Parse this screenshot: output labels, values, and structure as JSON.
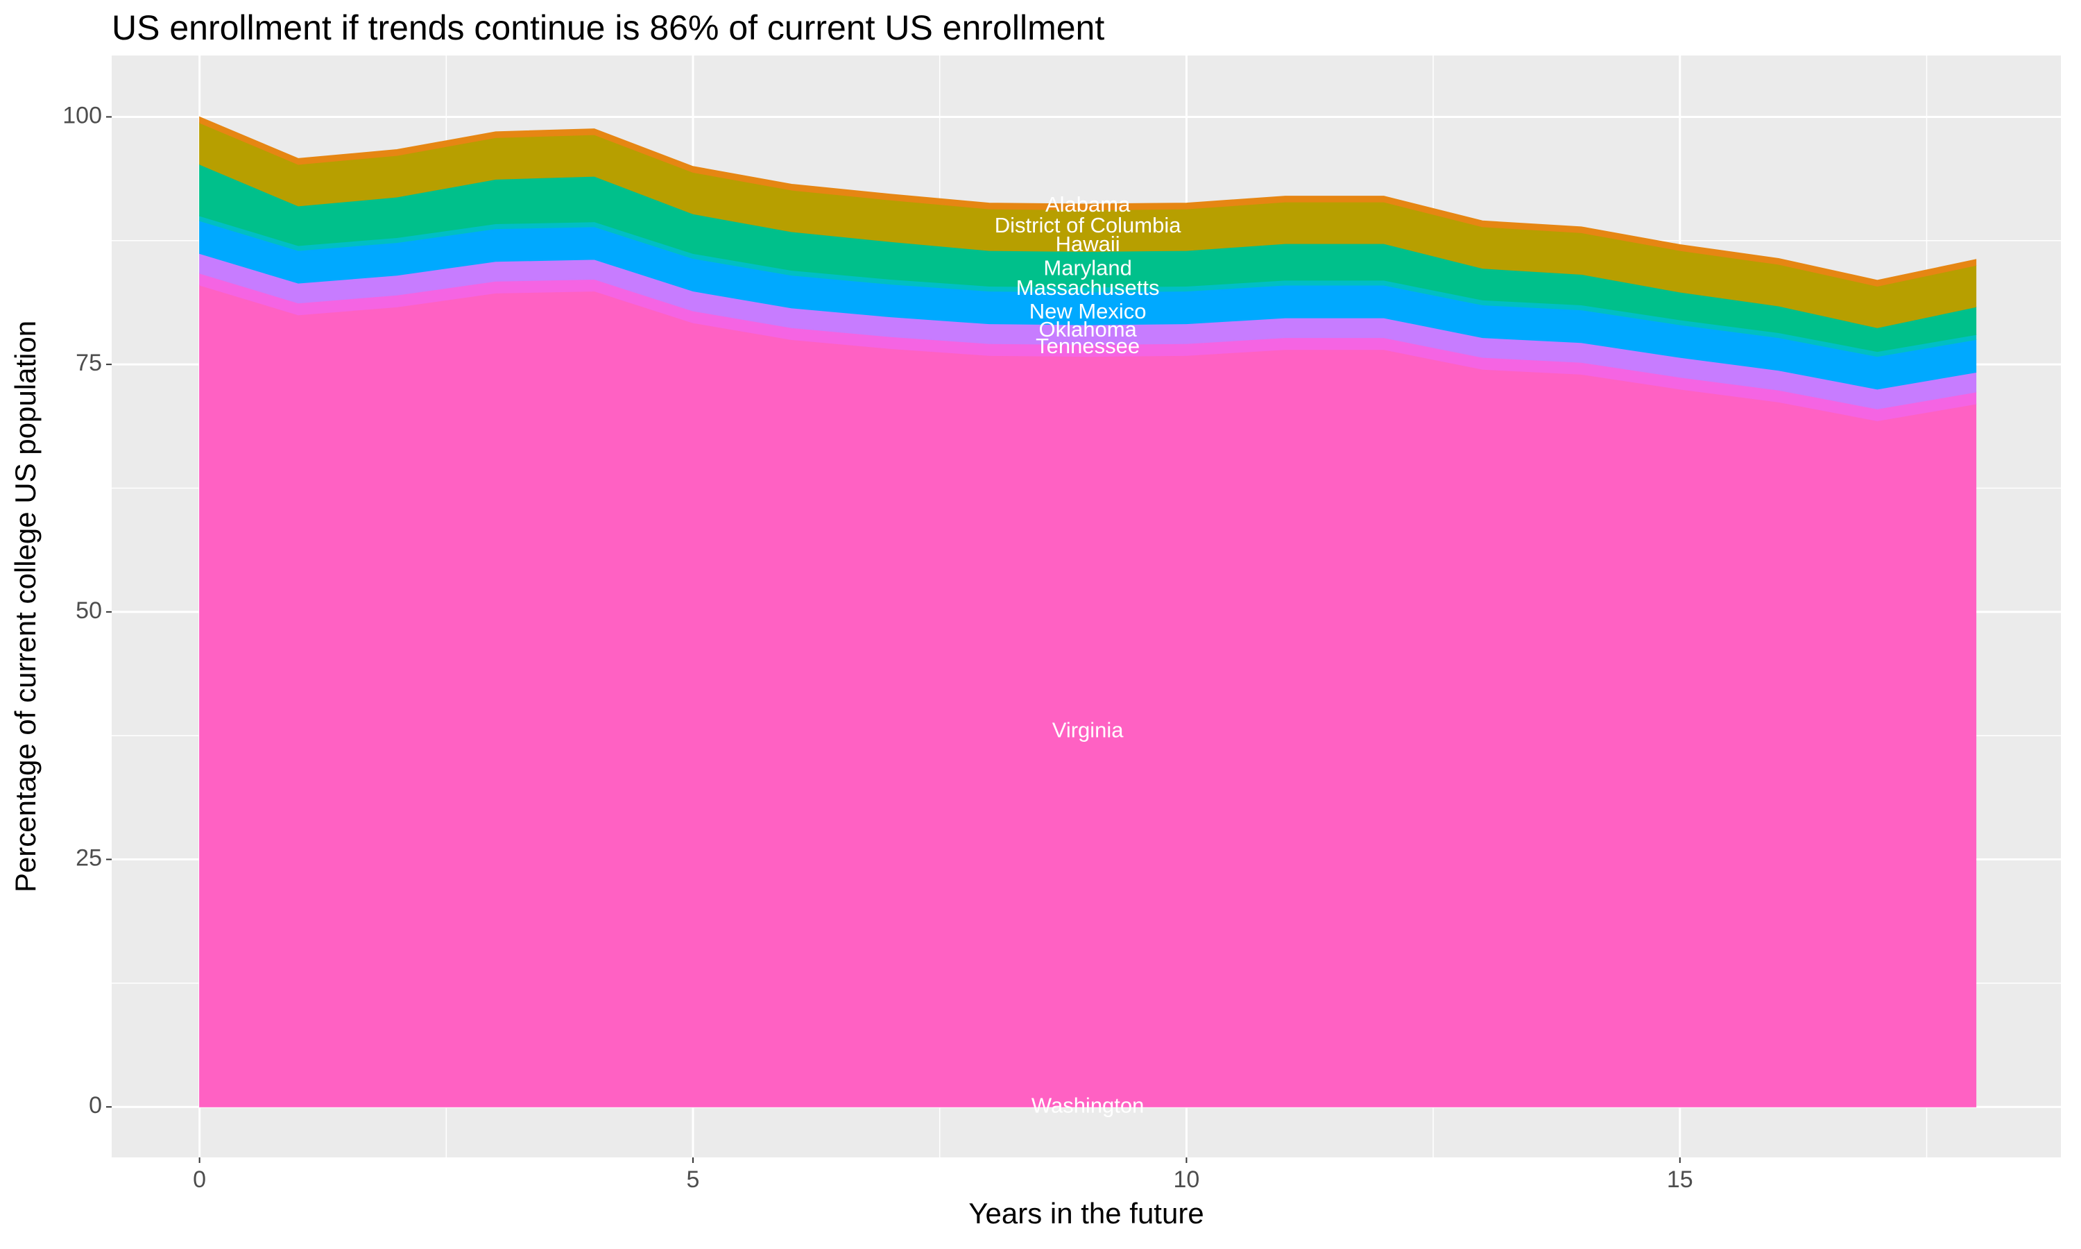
{
  "chart_data": {
    "type": "area",
    "stacked": true,
    "title": "US enrollment if trends continue is 86% of current US enrollment",
    "x_label": "Years in the future",
    "y_label": "Percentage of current college US population",
    "x": [
      0,
      1,
      2,
      3,
      4,
      5,
      6,
      7,
      8,
      9,
      10,
      11,
      12,
      13,
      14,
      15,
      16,
      17,
      18
    ],
    "series": [
      {
        "color": "#ff61c3",
        "values": [
          83,
          80,
          80.8,
          82.2,
          82.4,
          79.2,
          77.5,
          76.6,
          75.9,
          75.8,
          75.9,
          76.5,
          76.5,
          74.5,
          74,
          72.5,
          71.2,
          69.3,
          71
        ]
      },
      {
        "color": "#f564e3",
        "values": [
          1.2,
          1.2,
          1.2,
          1.2,
          1.2,
          1.2,
          1.2,
          1.2,
          1.2,
          1.2,
          1.2,
          1.2,
          1.2,
          1.2,
          1.2,
          1.2,
          1.2,
          1.2,
          1.2
        ]
      },
      {
        "color": "#c77cff",
        "values": [
          2,
          2,
          2,
          2,
          2,
          2,
          2,
          2,
          2,
          2,
          2,
          2,
          2,
          2,
          2,
          2,
          2,
          2,
          2
        ]
      },
      {
        "color": "#00a9ff",
        "values": [
          3.3,
          3.3,
          3.3,
          3.3,
          3.3,
          3.3,
          3.3,
          3.3,
          3.3,
          3.3,
          3.3,
          3.3,
          3.3,
          3.3,
          3.3,
          3.3,
          3.3,
          3.3,
          3.3
        ]
      },
      {
        "color": "#00bfc4",
        "values": [
          0.5,
          0.5,
          0.5,
          0.5,
          0.5,
          0.5,
          0.5,
          0.5,
          0.5,
          0.5,
          0.5,
          0.5,
          0.5,
          0.5,
          0.5,
          0.5,
          0.5,
          0.5,
          0.5
        ]
      },
      {
        "color": "#00c08b",
        "values": [
          5.2,
          4,
          4.1,
          4.5,
          4.6,
          4,
          3.9,
          3.8,
          3.6,
          3.6,
          3.6,
          3.7,
          3.7,
          3.2,
          3.1,
          2.8,
          2.7,
          2.4,
          2.8
        ]
      },
      {
        "color": "#b79f00",
        "values": [
          4.2,
          4.2,
          4.2,
          4.2,
          4.2,
          4.2,
          4.2,
          4.2,
          4.2,
          4.2,
          4.2,
          4.2,
          4.2,
          4.2,
          4.2,
          4.2,
          4.2,
          4.2,
          4.2
        ]
      },
      {
        "color": "#e68613",
        "values": [
          0.6,
          0.6,
          0.6,
          0.6,
          0.6,
          0.6,
          0.6,
          0.6,
          0.6,
          0.6,
          0.6,
          0.6,
          0.6,
          0.6,
          0.6,
          0.6,
          0.6,
          0.6,
          0.6
        ]
      }
    ],
    "annotations": [
      {
        "text": "Alabama",
        "x": 9,
        "y": 91
      },
      {
        "text": "District of Columbia",
        "x": 9,
        "y": 88.9
      },
      {
        "text": "Hawaii",
        "x": 9,
        "y": 87
      },
      {
        "text": "Maryland",
        "x": 9,
        "y": 84.6
      },
      {
        "text": "Massachusetts",
        "x": 9,
        "y": 82.6
      },
      {
        "text": "New Mexico",
        "x": 9,
        "y": 80.2
      },
      {
        "text": "Oklahoma",
        "x": 9,
        "y": 78.4
      },
      {
        "text": "Tennessee",
        "x": 9,
        "y": 76.7
      },
      {
        "text": "Virginia",
        "x": 9,
        "y": 37.9
      },
      {
        "text": "Washington",
        "x": 9,
        "y": 0
      }
    ],
    "xlim": [
      -0.89,
      18.86
    ],
    "ylim": [
      -5.1,
      106.2
    ],
    "xticks": [
      0,
      5,
      10,
      15
    ],
    "yticks": [
      0,
      25,
      50,
      75,
      100
    ],
    "grid": true
  }
}
